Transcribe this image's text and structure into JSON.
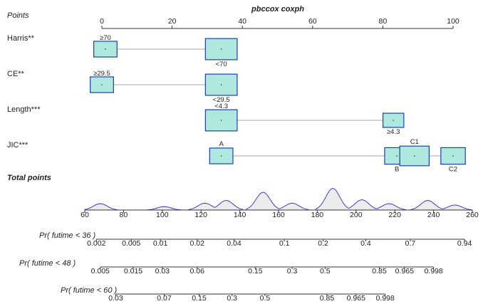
{
  "chart_data": {
    "type": "nomogram",
    "title": "pbccox coxph",
    "points_scale": {
      "label": "Points",
      "ticks": [
        0,
        20,
        40,
        60,
        80,
        100
      ]
    },
    "variables": [
      {
        "name": "Harris**",
        "categories": [
          {
            "label": "≥70",
            "points": 1,
            "size": 0.55
          },
          {
            "label": "<70",
            "points": 34,
            "size": 0.9
          }
        ]
      },
      {
        "name": "CE**",
        "categories": [
          {
            "label": "≥29.5",
            "points": 0,
            "size": 0.55
          },
          {
            "label": "<29.5",
            "points": 34,
            "size": 0.9
          }
        ]
      },
      {
        "name": "Length***",
        "categories": [
          {
            "label": "<4.3",
            "points": 34,
            "size": 0.9
          },
          {
            "label": "≥4.3",
            "points": 83,
            "size": 0.45
          }
        ]
      },
      {
        "name": "JIC***",
        "categories": [
          {
            "label": "A",
            "points": 34,
            "size": 0.55
          },
          {
            "label": "B",
            "points": 84,
            "size": 0.6
          },
          {
            "label": "C1",
            "points": 89,
            "size": 0.8
          },
          {
            "label": "C2",
            "points": 100,
            "size": 0.6
          }
        ]
      }
    ],
    "total_points": {
      "label": "Total points",
      "ticks": [
        60,
        80,
        100,
        120,
        140,
        160,
        180,
        200,
        220,
        240,
        260
      ],
      "range": [
        60,
        260
      ],
      "density_peaks": [
        {
          "x": 68,
          "h": 0.28
        },
        {
          "x": 101,
          "h": 0.15
        },
        {
          "x": 122,
          "h": 0.3
        },
        {
          "x": 133,
          "h": 0.42
        },
        {
          "x": 152,
          "h": 0.78
        },
        {
          "x": 167,
          "h": 0.3
        },
        {
          "x": 188,
          "h": 0.95
        },
        {
          "x": 203,
          "h": 0.45
        },
        {
          "x": 217,
          "h": 0.28
        },
        {
          "x": 237,
          "h": 0.42
        },
        {
          "x": 251,
          "h": 0.22
        }
      ]
    },
    "probability_scales": [
      {
        "label": "Pr( futime < 36 )",
        "ticks": [
          {
            "label": "0.002",
            "total": 66
          },
          {
            "label": "0.005",
            "total": 84
          },
          {
            "label": "0.01",
            "total": 99
          },
          {
            "label": "0.02",
            "total": 118
          },
          {
            "label": "0.04",
            "total": 137
          },
          {
            "label": "0.1",
            "total": 163
          },
          {
            "label": "0.2",
            "total": 183
          },
          {
            "label": "0.4",
            "total": 205
          },
          {
            "label": "0.7",
            "total": 228
          },
          {
            "label": "0.94",
            "total": 256
          }
        ]
      },
      {
        "label": "Pr( futime < 48 )",
        "ticks": [
          {
            "label": "0.005",
            "total": 68
          },
          {
            "label": "0.015",
            "total": 85
          },
          {
            "label": "0.03",
            "total": 100
          },
          {
            "label": "0.06",
            "total": 118
          },
          {
            "label": "0.15",
            "total": 148
          },
          {
            "label": "0.3",
            "total": 167
          },
          {
            "label": "0.5",
            "total": 184
          },
          {
            "label": "0.85",
            "total": 212
          },
          {
            "label": "0.965",
            "total": 225
          },
          {
            "label": "0.998",
            "total": 240
          }
        ]
      },
      {
        "label": "Pr( futime < 60 )",
        "ticks": [
          {
            "label": "0.03",
            "total": 76
          },
          {
            "label": "0.07",
            "total": 101
          },
          {
            "label": "0.15",
            "total": 119
          },
          {
            "label": "0.3",
            "total": 136
          },
          {
            "label": "0.5",
            "total": 153
          },
          {
            "label": "0.85",
            "total": 185
          },
          {
            "label": "0.965",
            "total": 200
          },
          {
            "label": "0.998",
            "total": 215
          }
        ]
      }
    ],
    "colors": {
      "box_fill": "#aee8df",
      "box_stroke": "#1d3fb3",
      "density_fill": "#ececec",
      "density_stroke": "#2d2dc8",
      "connector": "#aaaaaa",
      "axis": "#333333"
    }
  }
}
